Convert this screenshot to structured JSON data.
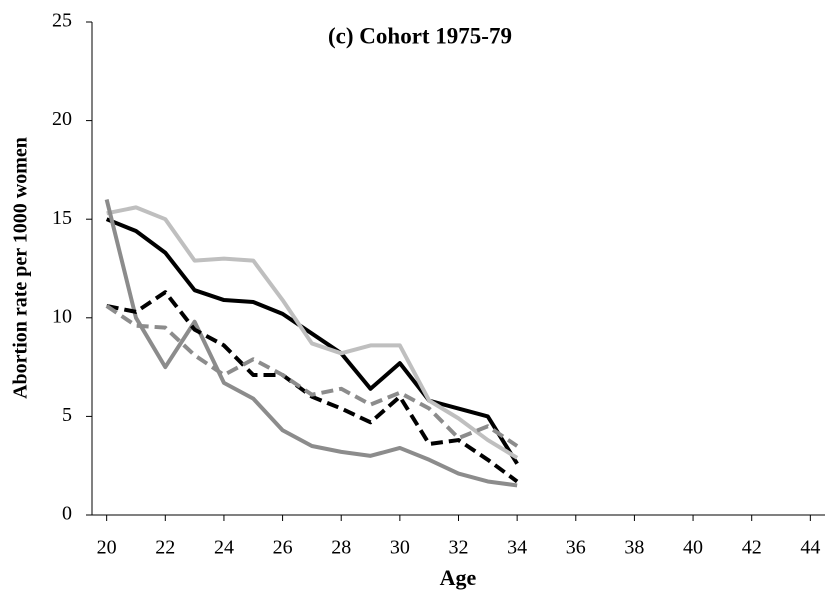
{
  "chart_data": {
    "type": "line",
    "title": "(c) Cohort 1975-79",
    "x_label": "Age",
    "y_label": "Abortion rate per 1000 women",
    "x": [
      20,
      21,
      22,
      23,
      24,
      25,
      26,
      27,
      28,
      29,
      30,
      31,
      32,
      33,
      34
    ],
    "series": [
      {
        "color": "#000000",
        "dash": false,
        "values": [
          15.0,
          14.4,
          13.3,
          11.4,
          10.9,
          10.8,
          10.2,
          9.2,
          8.2,
          6.4,
          7.7,
          5.8,
          5.4,
          5.0,
          2.6
        ]
      },
      {
        "color": "#bfbfbf",
        "dash": false,
        "values": [
          15.3,
          15.6,
          15.0,
          12.9,
          13.0,
          12.9,
          10.9,
          8.7,
          8.2,
          8.6,
          8.6,
          5.8,
          4.9,
          3.8,
          2.9
        ]
      },
      {
        "color": "#8c8c8c",
        "dash": false,
        "values": [
          16.0,
          10.0,
          7.5,
          9.8,
          6.7,
          5.9,
          4.3,
          3.5,
          3.2,
          3.0,
          3.4,
          2.8,
          2.1,
          1.7,
          1.5
        ]
      },
      {
        "color": "#000000",
        "dash": true,
        "values": [
          10.6,
          10.3,
          11.3,
          9.4,
          8.6,
          7.1,
          7.1,
          6.0,
          5.4,
          4.7,
          6.0,
          3.6,
          3.8,
          2.8,
          1.7
        ]
      },
      {
        "color": "#8c8c8c",
        "dash": true,
        "values": [
          10.6,
          9.6,
          9.5,
          8.1,
          7.1,
          7.9,
          7.1,
          6.1,
          6.4,
          5.6,
          6.2,
          5.4,
          3.9,
          4.5,
          3.5
        ]
      }
    ],
    "xlim": [
      19.5,
      44.5
    ],
    "xticks": [
      20,
      22,
      24,
      26,
      28,
      30,
      32,
      34,
      36,
      38,
      40,
      42,
      44
    ],
    "ylim": [
      0,
      25
    ],
    "yticks": [
      0,
      5,
      10,
      15,
      20,
      25
    ],
    "grid": false
  }
}
